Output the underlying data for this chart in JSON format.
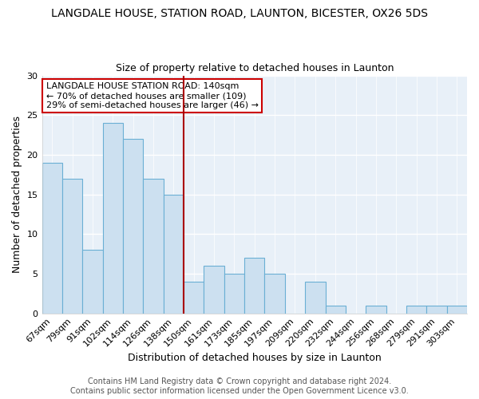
{
  "title": "LANGDALE HOUSE, STATION ROAD, LAUNTON, BICESTER, OX26 5DS",
  "subtitle": "Size of property relative to detached houses in Launton",
  "xlabel": "Distribution of detached houses by size in Launton",
  "ylabel": "Number of detached properties",
  "categories": [
    "67sqm",
    "79sqm",
    "91sqm",
    "102sqm",
    "114sqm",
    "126sqm",
    "138sqm",
    "150sqm",
    "161sqm",
    "173sqm",
    "185sqm",
    "197sqm",
    "209sqm",
    "220sqm",
    "232sqm",
    "244sqm",
    "256sqm",
    "268sqm",
    "279sqm",
    "291sqm",
    "303sqm"
  ],
  "values": [
    19,
    17,
    8,
    24,
    22,
    17,
    15,
    4,
    6,
    5,
    7,
    5,
    0,
    4,
    1,
    0,
    1,
    0,
    1,
    1,
    1
  ],
  "bar_color": "#cce0f0",
  "bar_edge_color": "#6aafd4",
  "vline_x_index": 6,
  "vline_color": "#aa0000",
  "annotation_line1": "LANGDALE HOUSE STATION ROAD: 140sqm",
  "annotation_line2": "← 70% of detached houses are smaller (109)",
  "annotation_line3": "29% of semi-detached houses are larger (46) →",
  "annotation_box_edge_color": "#cc0000",
  "ylim": [
    0,
    30
  ],
  "yticks": [
    0,
    5,
    10,
    15,
    20,
    25,
    30
  ],
  "footer_line1": "Contains HM Land Registry data © Crown copyright and database right 2024.",
  "footer_line2": "Contains public sector information licensed under the Open Government Licence v3.0.",
  "background_color": "#ffffff",
  "plot_background_color": "#e8f0f8",
  "title_fontsize": 10,
  "subtitle_fontsize": 9,
  "axis_label_fontsize": 9,
  "tick_fontsize": 8,
  "annotation_fontsize": 8,
  "footer_fontsize": 7
}
